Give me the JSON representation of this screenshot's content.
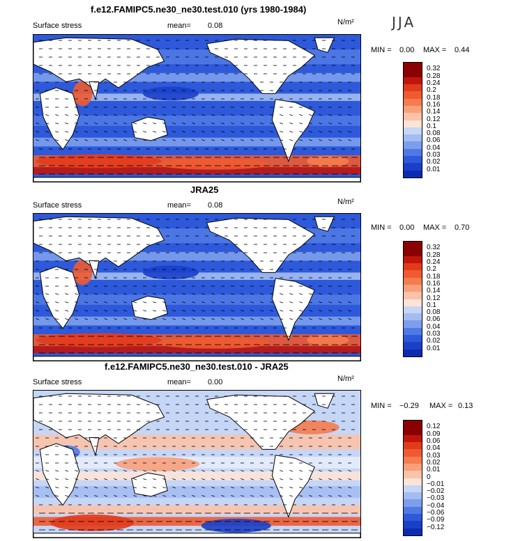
{
  "season": "JJA",
  "colors": {
    "warm": [
      "#8b0000",
      "#c0150b",
      "#e23b1c",
      "#f05a30",
      "#f57c4f",
      "#f8a07a",
      "#fbc3a8",
      "#fde4d6"
    ],
    "cool": [
      "#e4ecfb",
      "#c6d6f7",
      "#a3bcf2",
      "#7c9eec",
      "#4f79e4",
      "#2d59da",
      "#1a3fc9",
      "#0d2bb0",
      "#051a8e"
    ],
    "diffcool": [
      "#e4ecfb",
      "#c6d6f7",
      "#a3bcf2",
      "#7c9eec",
      "#4f79e4",
      "#2d59da",
      "#1a3fc9",
      "#0d2bb0",
      "#051a8e"
    ],
    "land": "#ffffff"
  },
  "panels": [
    {
      "title": "f.e12.FAMIPC5.ne30_ne30.test.010 (yrs 1980-1984)",
      "variable": "Surface stress",
      "mean_label": "mean=",
      "mean_value": "0.08",
      "units": "N/m²",
      "min_label": "MIN =",
      "min_value": "0.00",
      "max_label": "MAX =",
      "max_value": "0.44",
      "levels": [
        "0.32",
        "0.28",
        "0.24",
        "0.2",
        "0.18",
        "0.16",
        "0.14",
        "0.12",
        "0.1",
        "0.08",
        "0.06",
        "0.04",
        "0.03",
        "0.02",
        "0.01"
      ],
      "palette": "abs"
    },
    {
      "title": "JRA25",
      "variable": "Surface stress",
      "mean_label": "mean=",
      "mean_value": "0.08",
      "units": "N/m²",
      "min_label": "MIN =",
      "min_value": "0.00",
      "max_label": "MAX =",
      "max_value": "0.70",
      "levels": [
        "0.32",
        "0.28",
        "0.24",
        "0.2",
        "0.18",
        "0.16",
        "0.14",
        "0.12",
        "0.1",
        "0.08",
        "0.06",
        "0.04",
        "0.03",
        "0.02",
        "0.01"
      ],
      "palette": "abs"
    },
    {
      "title": "f.e12.FAMIPC5.ne30_ne30.test.010 - JRA25",
      "variable": "Surface stress",
      "mean_label": "mean=",
      "mean_value": "0.00",
      "units": "N/m²",
      "min_label": "MIN =",
      "min_value": "−0.29",
      "max_label": "MAX =",
      "max_value": "0.13",
      "levels": [
        "0.12",
        "0.09",
        "0.06",
        "0.04",
        "0.03",
        "0.02",
        "0.01",
        "0",
        "−0.01",
        "−0.02",
        "−0.03",
        "−0.04",
        "−0.06",
        "−0.09",
        "−0.12"
      ],
      "palette": "diff"
    }
  ]
}
